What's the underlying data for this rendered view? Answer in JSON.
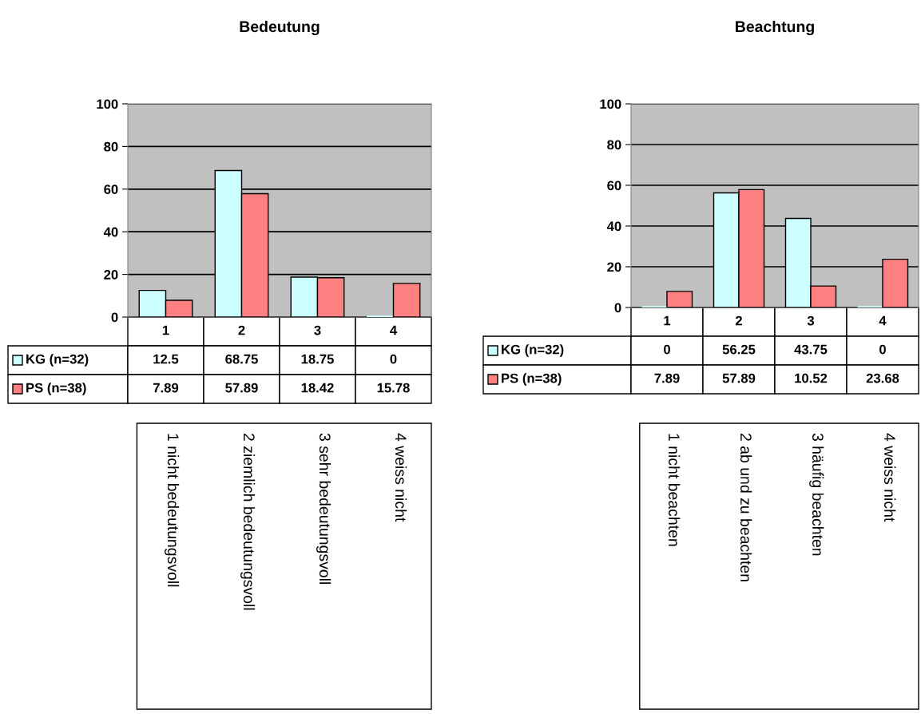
{
  "chart_data": [
    {
      "type": "bar",
      "title": "Bedeutung",
      "categories": [
        "1",
        "2",
        "3",
        "4"
      ],
      "series": [
        {
          "name": "KG (n=32)",
          "color": "#ccffff",
          "values": [
            12.5,
            68.75,
            18.75,
            0
          ]
        },
        {
          "name": "PS (n=38)",
          "color": "#ff8080",
          "values": [
            7.89,
            57.89,
            18.42,
            15.78
          ]
        }
      ],
      "ylim": [
        0,
        100
      ],
      "yticks": [
        0,
        20,
        40,
        60,
        80,
        100
      ],
      "grid": "y",
      "tick_labels": "y",
      "data_labels": true,
      "legend": "bottom left",
      "annotations": [
        "1 nicht bedeutungsvoll",
        "2 ziemlich bedeutungsvoll",
        "3 sehr bedeutungsvoll",
        "4 weiss nicht"
      ]
    },
    {
      "type": "bar",
      "title": "Beachtung",
      "categories": [
        "1",
        "2",
        "3",
        "4"
      ],
      "series": [
        {
          "name": "KG (n=32)",
          "color": "#ccffff",
          "values": [
            0,
            56.25,
            43.75,
            0
          ]
        },
        {
          "name": "PS (n=38)",
          "color": "#ff8080",
          "values": [
            7.89,
            57.89,
            10.52,
            23.68
          ]
        }
      ],
      "ylim": [
        0,
        100
      ],
      "yticks": [
        0,
        20,
        40,
        60,
        80,
        100
      ],
      "grid": "y",
      "tick_labels": "y",
      "data_labels": true,
      "legend": "bottom left",
      "annotations": [
        "1 nicht beachten",
        "2 ab und zu beachten",
        "3 häufig beachten",
        "4 weiss nicht"
      ]
    }
  ]
}
